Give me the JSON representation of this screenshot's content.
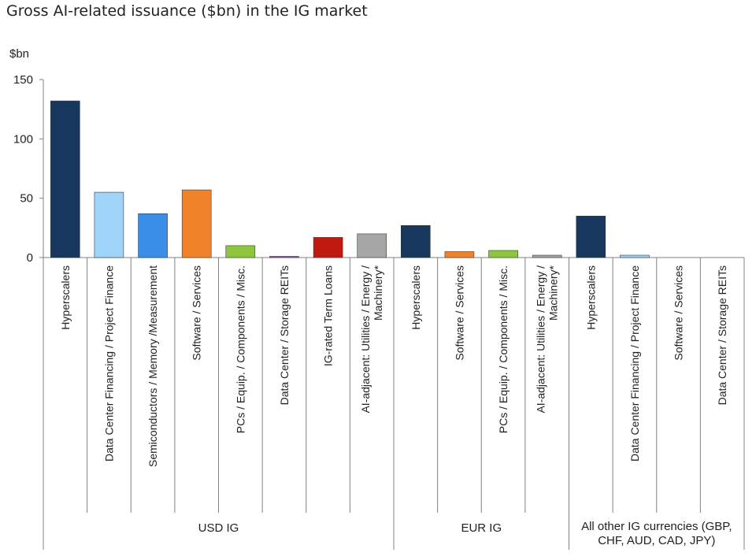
{
  "chart_data": {
    "type": "bar",
    "title": "Gross AI-related issuance ($bn) in the IG market",
    "ylabel": "$bn",
    "ylim": [
      0,
      150
    ],
    "yticks": [
      0,
      50,
      100,
      150
    ],
    "grid": false,
    "legend": "none",
    "categories": [
      {
        "label": "Hyperscalers",
        "group": "USD IG",
        "value": 132,
        "color": "#17375e"
      },
      {
        "label": "Data Center Financing / Project Finance",
        "group": "USD IG",
        "value": 55,
        "color": "#9fd3f7"
      },
      {
        "label": "Semiconductors / Memory /Measurement",
        "group": "USD IG",
        "value": 37,
        "color": "#3b8ee8"
      },
      {
        "label": "Software / Services",
        "group": "USD IG",
        "value": 57,
        "color": "#f0822a"
      },
      {
        "label": "PCs / Equip. / Components / Misc.",
        "group": "USD IG",
        "value": 10,
        "color": "#8cc63f"
      },
      {
        "label": "Data Center / Storage REITs",
        "group": "USD IG",
        "value": 1,
        "color": "#7f4fa0"
      },
      {
        "label": "IG-rated Term Loans",
        "group": "USD IG",
        "value": 17,
        "color": "#c0190f"
      },
      {
        "label": "AI-adjacent: Utilities / Energy / Machinery*",
        "group": "USD IG",
        "value": 20,
        "color": "#a6a6a6"
      },
      {
        "label": "Hyperscalers",
        "group": "EUR IG",
        "value": 27,
        "color": "#17375e"
      },
      {
        "label": "Software / Services",
        "group": "EUR IG",
        "value": 5,
        "color": "#f0822a"
      },
      {
        "label": "PCs / Equip. / Components / Misc.",
        "group": "EUR IG",
        "value": 6,
        "color": "#8cc63f"
      },
      {
        "label": "AI-adjacent: Utilities / Energy / Machinery*",
        "group": "EUR IG",
        "value": 2,
        "color": "#a6a6a6"
      },
      {
        "label": "Hyperscalers",
        "group": "All other IG currencies (GBP, CHF, AUD, CAD, JPY)",
        "value": 35,
        "color": "#17375e"
      },
      {
        "label": "Data Center Financing / Project Finance",
        "group": "All other IG currencies (GBP, CHF, AUD, CAD, JPY)",
        "value": 2,
        "color": "#9fd3f7"
      },
      {
        "label": "Software / Services",
        "group": "All other IG currencies (GBP, CHF, AUD, CAD, JPY)",
        "value": 0,
        "color": "#f0822a"
      },
      {
        "label": "Data Center / Storage REITs",
        "group": "All other IG currencies (GBP, CHF, AUD, CAD, JPY)",
        "value": 0,
        "color": "#7f4fa0"
      }
    ],
    "groups": [
      {
        "name": "USD IG",
        "count": 8
      },
      {
        "name": "EUR IG",
        "count": 4
      },
      {
        "name": "All other IG currencies (GBP, CHF, AUD, CAD, JPY)",
        "count": 4
      }
    ]
  }
}
